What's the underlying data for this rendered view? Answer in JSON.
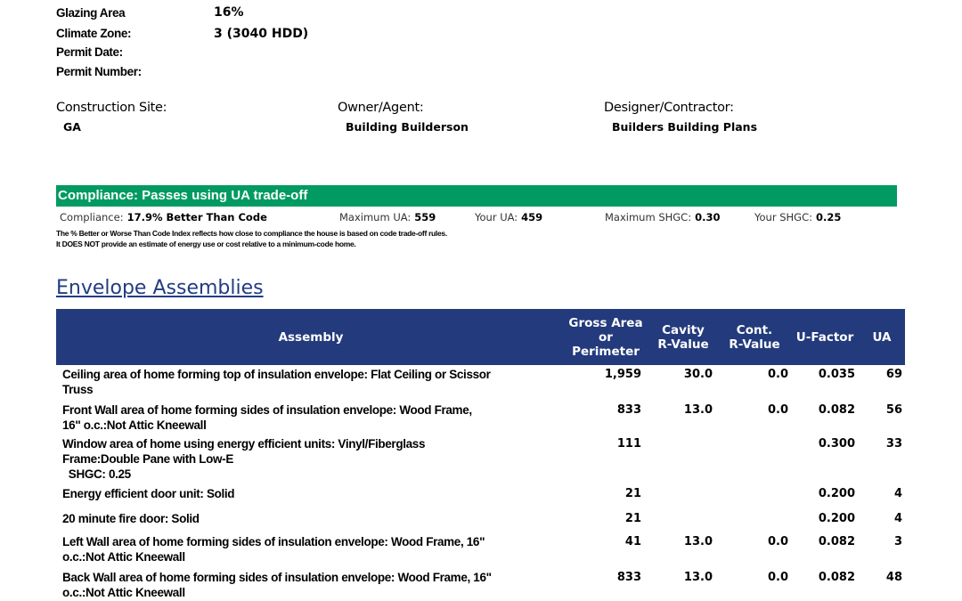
{
  "info": [
    {
      "label": "Glazing Area",
      "value": "16%"
    },
    {
      "label": "Climate Zone:",
      "value": "3  (3040 HDD)"
    },
    {
      "label": "Permit Date:",
      "value": ""
    },
    {
      "label": "Permit Number:",
      "value": ""
    }
  ],
  "parties": [
    {
      "heading": "Construction Site:",
      "value": "GA"
    },
    {
      "heading": "Owner/Agent:",
      "value": "Building Builderson"
    },
    {
      "heading": "Designer/Contractor:",
      "value": "Builders Building Plans"
    }
  ],
  "compliance": {
    "banner": "Compliance: Passes using UA trade-off",
    "banner_color": "#009a62",
    "items": [
      {
        "label": "Compliance:",
        "value": "17.9% Better Than Code"
      },
      {
        "label": "Maximum UA:",
        "value": "559"
      },
      {
        "label": "Your UA:",
        "value": "459"
      },
      {
        "label": "Maximum SHGC:",
        "value": "0.30"
      },
      {
        "label": "Your SHGC:",
        "value": "0.25"
      }
    ],
    "note1": "The % Better or Worse Than Code Index reflects  how close to compliance the house is based on code trade-off rules.",
    "note2": "It DOES NOT provide an estimate of energy use or cost relative to a minimum-code home."
  },
  "envelope": {
    "title": "Envelope Assemblies",
    "header_color": "#233b7c",
    "columns": [
      "Assembly",
      "Gross Area\nor\nPerimeter",
      "Cavity\nR-Value",
      "Cont.\nR-Value",
      "U-Factor",
      "UA"
    ],
    "rows": [
      {
        "lines": [
          "Ceiling area of home forming top of insulation envelope: Flat Ceiling or Scissor",
          "Truss"
        ],
        "area": "1,959",
        "cavity": "30.0",
        "cont": "0.0",
        "ufactor": "0.035",
        "ua": "69"
      },
      {
        "lines": [
          "Front Wall area of home forming sides of insulation envelope: Wood Frame,",
          "16\" o.c.:Not Attic Kneewall"
        ],
        "area": "833",
        "cavity": "13.0",
        "cont": "0.0",
        "ufactor": "0.082",
        "ua": "56"
      },
      {
        "lines": [
          "Window area of home using energy efficient units: Vinyl/Fiberglass",
          "Frame:Double Pane with Low-E",
          "  SHGC: 0.25"
        ],
        "area": "111",
        "cavity": "",
        "cont": "",
        "ufactor": "0.300",
        "ua": "33"
      },
      {
        "lines": [
          "Energy efficient door unit: Solid"
        ],
        "area": "21",
        "cavity": "",
        "cont": "",
        "ufactor": "0.200",
        "ua": "4"
      },
      {
        "lines": [
          "20 minute fire door: Solid"
        ],
        "area": "21",
        "cavity": "",
        "cont": "",
        "ufactor": "0.200",
        "ua": "4"
      },
      {
        "lines": [
          "Left Wall area of home forming sides of insulation envelope: Wood Frame, 16\"",
          "o.c.:Not Attic Kneewall"
        ],
        "area": "41",
        "cavity": "13.0",
        "cont": "0.0",
        "ufactor": "0.082",
        "ua": "3"
      },
      {
        "lines": [
          "Back Wall area of home forming sides of insulation envelope: Wood Frame, 16\"",
          "o.c.:Not Attic Kneewall"
        ],
        "area": "833",
        "cavity": "13.0",
        "cont": "0.0",
        "ufactor": "0.082",
        "ua": "48"
      }
    ]
  }
}
